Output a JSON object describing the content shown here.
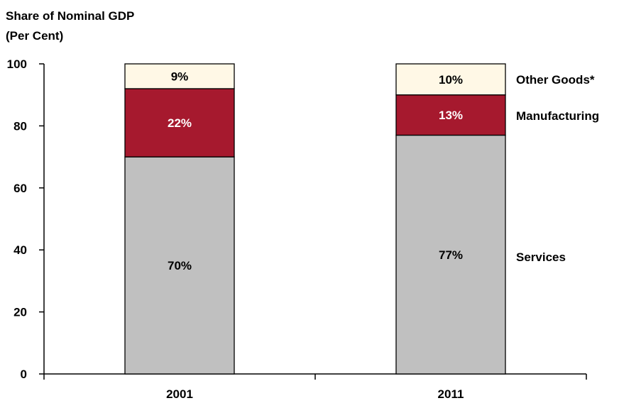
{
  "chart_data": {
    "type": "bar",
    "stacked": true,
    "ylabel_lines": [
      "Share of Nominal GDP",
      "(Per Cent)"
    ],
    "ylim": [
      0,
      100
    ],
    "yticks": [
      0,
      20,
      40,
      60,
      80,
      100
    ],
    "categories": [
      "2001",
      "2011"
    ],
    "series": [
      {
        "name": "Services",
        "values": [
          70,
          77
        ],
        "labels": [
          "70%",
          "77%"
        ],
        "color": "#c0c0c0",
        "label_color": "#000000"
      },
      {
        "name": "Manufacturing",
        "values": [
          22,
          13
        ],
        "labels": [
          "22%",
          "13%"
        ],
        "color": "#a6192e",
        "label_color": "#ffffff"
      },
      {
        "name": "Other Goods*",
        "values": [
          9,
          10
        ],
        "labels": [
          "9%",
          "10%"
        ],
        "color": "#fff8e6",
        "label_color": "#000000"
      }
    ],
    "legend_placement": "right, beside bars",
    "grid": false
  }
}
